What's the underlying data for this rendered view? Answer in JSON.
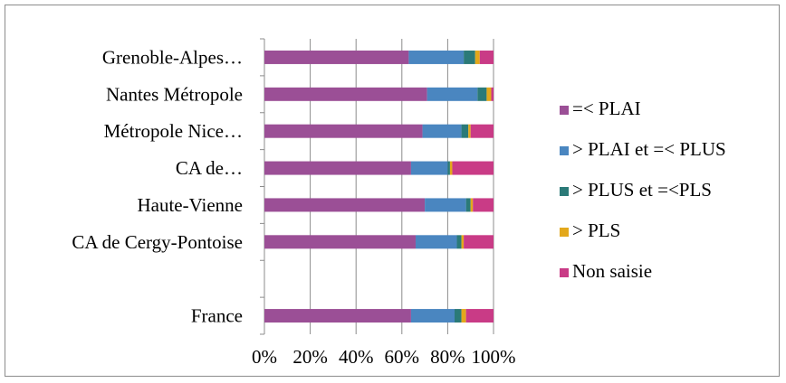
{
  "chart_data": {
    "type": "bar",
    "orientation": "horizontal",
    "stacked": "percent",
    "categories": [
      "Grenoble-Alpes…",
      "Nantes Métropole",
      "Métropole Nice…",
      "CA de…",
      "Haute-Vienne",
      "CA de Cergy-Pontoise",
      "",
      "France"
    ],
    "series": [
      {
        "name": "=< PLAI",
        "color": "#9b4f96",
        "values": [
          63,
          71,
          69,
          64,
          70,
          66,
          null,
          64
        ]
      },
      {
        "name": "> PLAI et =< PLUS",
        "color": "#4a86c0",
        "values": [
          24,
          22,
          17,
          16,
          18,
          18,
          null,
          19
        ]
      },
      {
        "name": "> PLUS et =<PLS",
        "color": "#2b7a78",
        "values": [
          5,
          4,
          3,
          1,
          2,
          2,
          null,
          3
        ]
      },
      {
        "name": "> PLS",
        "color": "#e3a81b",
        "values": [
          2,
          2,
          1,
          1,
          1,
          1,
          null,
          2
        ]
      },
      {
        "name": "Non saisie",
        "color": "#c93b86",
        "values": [
          6,
          1,
          10,
          18,
          9,
          13,
          null,
          12
        ]
      }
    ],
    "xlim": [
      0,
      100
    ],
    "xticks": [
      "0%",
      "20%",
      "40%",
      "60%",
      "80%",
      "100%"
    ],
    "grid": "vertical",
    "legend_position": "right"
  }
}
